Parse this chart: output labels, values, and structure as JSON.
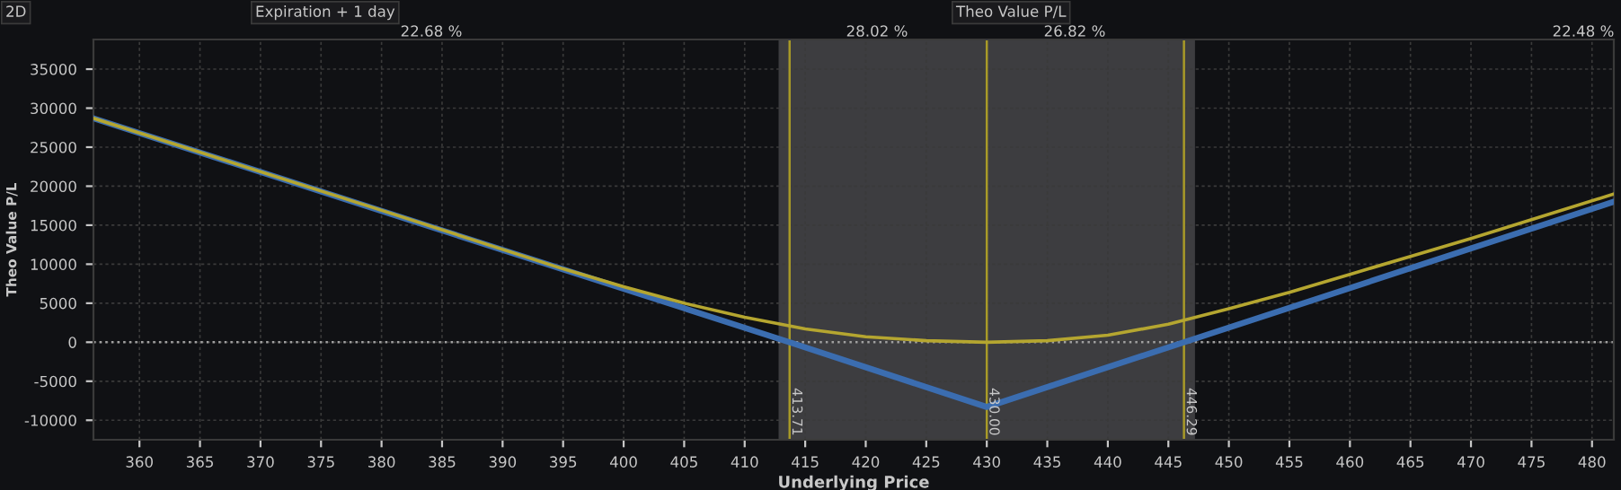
{
  "chart_data": {
    "type": "line",
    "xlabel": "Underlying Price",
    "ylabel": "Theo Value P/L",
    "xlim": [
      356.2,
      481.8
    ],
    "ylim": [
      -12500,
      38800
    ],
    "xticks": [
      360,
      365,
      370,
      375,
      380,
      385,
      390,
      395,
      400,
      405,
      410,
      415,
      420,
      425,
      430,
      435,
      440,
      445,
      450,
      455,
      460,
      465,
      470,
      475,
      480
    ],
    "yticks": [
      -10000,
      -5000,
      0,
      5000,
      10000,
      15000,
      20000,
      25000,
      30000,
      35000
    ],
    "grid": true,
    "legend": false,
    "marker": "none",
    "line_style": "solid",
    "series": [
      {
        "color": "#3b6db0",
        "x": [
          356.2,
          413.71,
          430,
          446.29,
          481.8
        ],
        "values": [
          28700,
          0,
          -8300,
          0,
          18000
        ]
      },
      {
        "color": "#b5a630",
        "x": [
          356.2,
          380,
          395,
          400,
          405,
          410,
          415,
          420,
          425,
          430,
          435,
          440,
          445,
          450,
          455,
          460,
          465,
          470,
          475,
          481.8
        ],
        "values": [
          28700,
          16900,
          9400,
          7100,
          5000,
          3200,
          1700,
          700,
          200,
          0,
          200,
          900,
          2300,
          4300,
          6400,
          8700,
          11000,
          13300,
          15700,
          19000
        ]
      }
    ],
    "ref_lines": [
      {
        "axis": "y",
        "value": 0,
        "color": "#a0a0a0",
        "line_style": "dotted"
      },
      {
        "axis": "x",
        "value": 413.71,
        "label": "413.71",
        "color": "#a89a28"
      },
      {
        "axis": "x",
        "value": 430.0,
        "label": "430.00",
        "color": "#a89a28"
      },
      {
        "axis": "x",
        "value": 446.29,
        "label": "446.29",
        "color": "#a89a28"
      }
    ],
    "bands": [
      {
        "axis": "x",
        "from": 412.8,
        "to": 447.2,
        "color": "#3d3d40"
      }
    ],
    "annotations": [
      "2D",
      "Expiration + 1 day",
      "Theo Value P/L",
      "22.68 %",
      "28.02 %",
      "26.82 %",
      "22.48 %"
    ]
  }
}
